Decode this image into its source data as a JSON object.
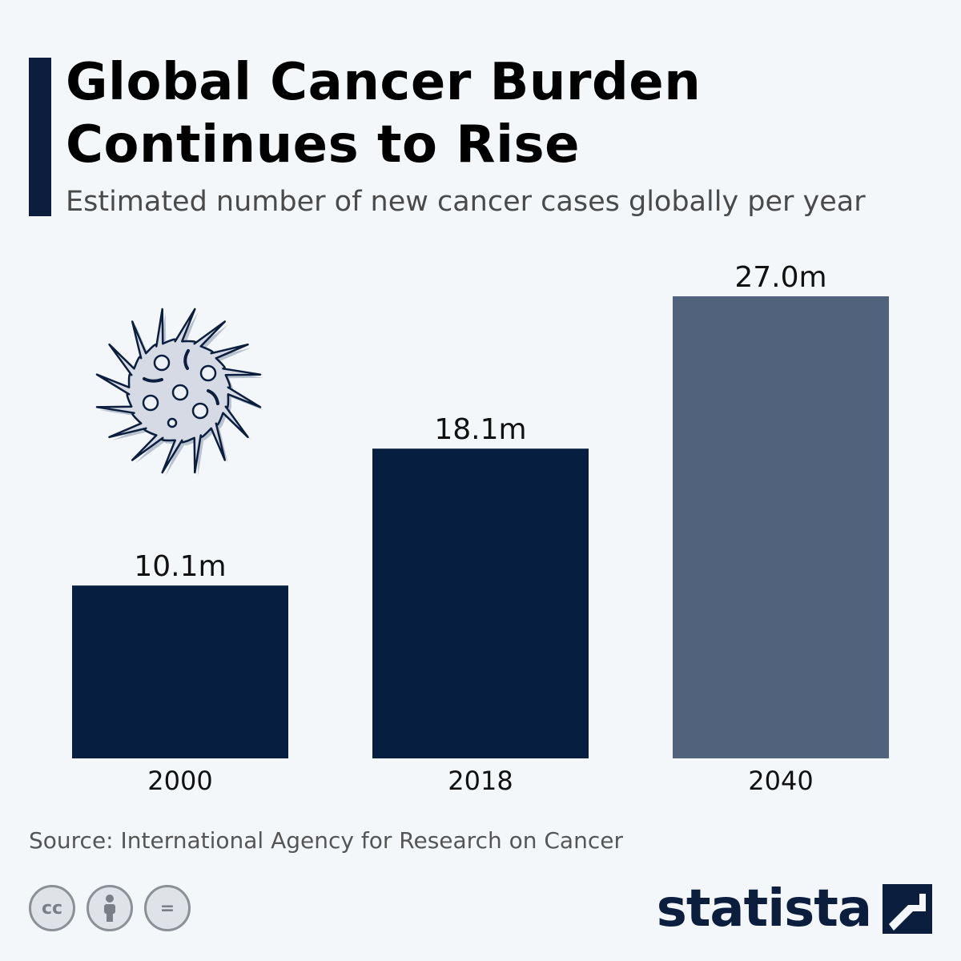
{
  "header": {
    "title": "Global Cancer Burden\nContinues to Rise",
    "subtitle": "Estimated number of new cancer cases globally per year"
  },
  "chart_data": {
    "type": "bar",
    "title": "Global Cancer Burden Continues to Rise",
    "subtitle": "Estimated number of new cancer cases globally per year",
    "categories": [
      "2000",
      "2018",
      "2040"
    ],
    "values": [
      10.1,
      18.1,
      27.0
    ],
    "value_labels": [
      "10.1m",
      "18.1m",
      "27.0m"
    ],
    "unit": "m",
    "ylim": [
      0,
      30
    ],
    "grid": false,
    "colors": [
      "#061e40",
      "#061e40",
      "#50627c"
    ]
  },
  "footer": {
    "source": "Source: International Agency for Research on Cancer",
    "license_icons": [
      "creative-commons-icon",
      "attribution-icon",
      "no-derivatives-icon"
    ],
    "cc_label": "cc",
    "nd_label": "=",
    "brand": "statista"
  },
  "icons": {
    "illustration": "virus-cell-icon",
    "brand_mark": "statista-logo-icon"
  },
  "colors": {
    "background": "#f4f7fa",
    "accent": "#0c1e3e",
    "bar_actual": "#061e40",
    "bar_projected": "#50627c"
  }
}
